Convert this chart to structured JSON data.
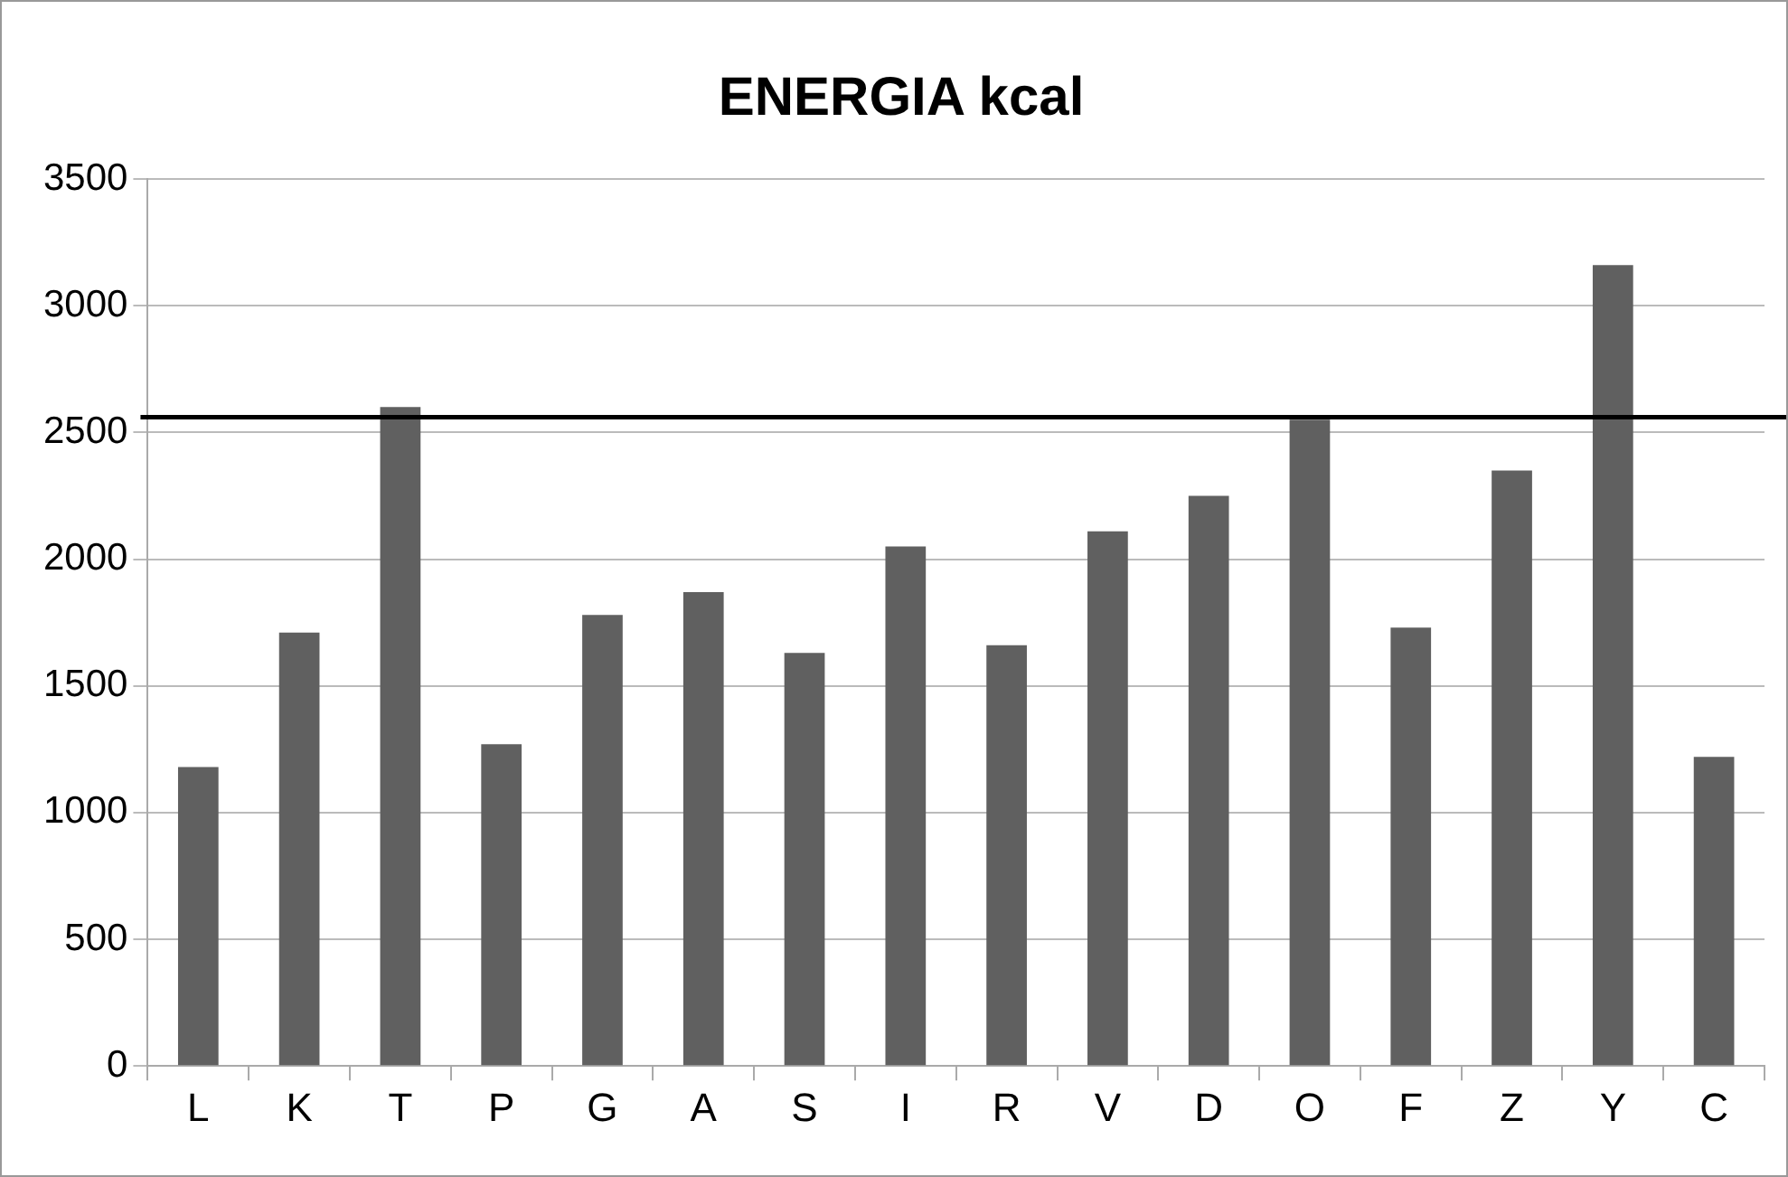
{
  "chart_data": {
    "type": "bar",
    "title": "ENERGIA kcal",
    "categories": [
      "L",
      "K",
      "T",
      "P",
      "G",
      "A",
      "S",
      "I",
      "R",
      "V",
      "D",
      "O",
      "F",
      "Z",
      "Y",
      "C"
    ],
    "values": [
      1180,
      1710,
      2600,
      1270,
      1780,
      1870,
      1630,
      2050,
      1660,
      2110,
      2250,
      2550,
      1730,
      2350,
      3160,
      1220
    ],
    "color": "#606060",
    "ylim": [
      0,
      3500
    ],
    "yticks": [
      0,
      500,
      1000,
      1500,
      2000,
      2500,
      3000,
      3500
    ],
    "grid": "y",
    "ref_lines": [
      {
        "axis": "y",
        "value": 2560,
        "color": "#000000"
      }
    ]
  }
}
